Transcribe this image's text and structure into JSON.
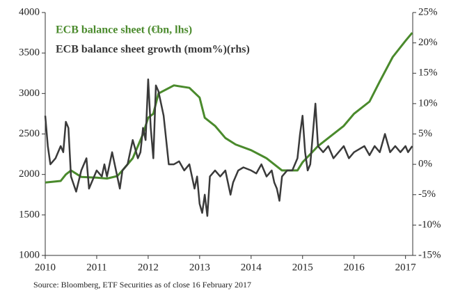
{
  "chart_data": {
    "type": "line",
    "legend": "top-left",
    "source": "Source: Bloomberg, ETF Securities as of close 16 February 2017",
    "xlim": [
      2010,
      2017.14
    ],
    "xticks": [
      2010,
      2011,
      2012,
      2013,
      2014,
      2015,
      2016,
      2017
    ],
    "ylim": [
      1000,
      4000
    ],
    "yticks": [
      1000,
      1500,
      2000,
      2500,
      3000,
      3500,
      4000
    ],
    "y2lim": [
      -15,
      25
    ],
    "y2ticks": [
      {
        "value": -15,
        "label": "-15%"
      },
      {
        "value": -10,
        "label": "-10%"
      },
      {
        "value": -5,
        "label": "-5%"
      },
      {
        "value": 0,
        "label": "0%"
      },
      {
        "value": 5,
        "label": "5%"
      },
      {
        "value": 10,
        "label": "10%"
      },
      {
        "value": 15,
        "label": "15%"
      },
      {
        "value": 20,
        "label": "20%"
      },
      {
        "value": 25,
        "label": "25%"
      }
    ],
    "series": [
      {
        "name": "ECB balance sheet (€bn, lhs)",
        "color": "#4a8a2c",
        "x": [
          2010.0,
          2010.3,
          2010.4,
          2010.5,
          2010.7,
          2011.0,
          2011.2,
          2011.4,
          2011.5,
          2011.7,
          2011.9,
          2012.0,
          2012.1,
          2012.2,
          2012.5,
          2012.8,
          2013.0,
          2013.1,
          2013.3,
          2013.5,
          2013.7,
          2014.0,
          2014.3,
          2014.6,
          2014.9,
          2015.0,
          2015.3,
          2015.5,
          2015.8,
          2016.0,
          2016.3,
          2016.5,
          2016.75,
          2017.0,
          2017.13
        ],
        "values": [
          1900,
          1920,
          2000,
          2050,
          1970,
          1960,
          1950,
          1980,
          2050,
          2200,
          2500,
          2700,
          2750,
          3000,
          3100,
          3070,
          2950,
          2700,
          2600,
          2450,
          2370,
          2300,
          2200,
          2050,
          2050,
          2150,
          2350,
          2450,
          2600,
          2750,
          2900,
          3150,
          3450,
          3650,
          3750
        ]
      },
      {
        "name": "ECB balance sheet growth (mom%)(rhs)",
        "color": "#3a3a3a",
        "axis": "y2",
        "x": [
          2010.0,
          2010.05,
          2010.1,
          2010.2,
          2010.3,
          2010.35,
          2010.4,
          2010.45,
          2010.5,
          2010.6,
          2010.7,
          2010.8,
          2010.85,
          2010.9,
          2011.0,
          2011.1,
          2011.15,
          2011.2,
          2011.3,
          2011.35,
          2011.45,
          2011.5,
          2011.6,
          2011.7,
          2011.8,
          2011.85,
          2011.9,
          2011.95,
          2012.0,
          2012.05,
          2012.1,
          2012.15,
          2012.2,
          2012.3,
          2012.4,
          2012.5,
          2012.6,
          2012.7,
          2012.8,
          2012.9,
          2012.95,
          2013.0,
          2013.05,
          2013.1,
          2013.15,
          2013.2,
          2013.3,
          2013.4,
          2013.5,
          2013.6,
          2013.65,
          2013.75,
          2013.85,
          2014.0,
          2014.1,
          2014.2,
          2014.3,
          2014.4,
          2014.45,
          2014.5,
          2014.55,
          2014.6,
          2014.7,
          2014.8,
          2014.9,
          2014.95,
          2015.0,
          2015.05,
          2015.1,
          2015.15,
          2015.25,
          2015.3,
          2015.4,
          2015.5,
          2015.6,
          2015.7,
          2015.8,
          2015.9,
          2016.0,
          2016.2,
          2016.3,
          2016.4,
          2016.5,
          2016.6,
          2016.7,
          2016.8,
          2016.9,
          2017.0,
          2017.05,
          2017.13
        ],
        "values": [
          8,
          3,
          0,
          1,
          3,
          2,
          7,
          6,
          -2,
          -4.5,
          -1,
          1,
          -4,
          -3,
          -1,
          -2,
          0,
          -2,
          2,
          0,
          -4,
          -1,
          0,
          4,
          1,
          2,
          6,
          4,
          14,
          6,
          1,
          13,
          12,
          8,
          0,
          0,
          0.5,
          -1,
          0,
          -4,
          -2,
          -6.5,
          -8,
          -5,
          -8.5,
          -2,
          -1,
          -2,
          -1,
          -5,
          -3,
          -1,
          -0.5,
          -1,
          -1.5,
          0,
          -2,
          -1,
          -3,
          -4,
          -6,
          -2,
          -1,
          -1,
          1,
          5,
          8,
          2,
          -1,
          0,
          10,
          3,
          2,
          3,
          1,
          2,
          3,
          1,
          2,
          3,
          1.5,
          3,
          2,
          5,
          2,
          3,
          2,
          3,
          2,
          3
        ]
      }
    ]
  }
}
